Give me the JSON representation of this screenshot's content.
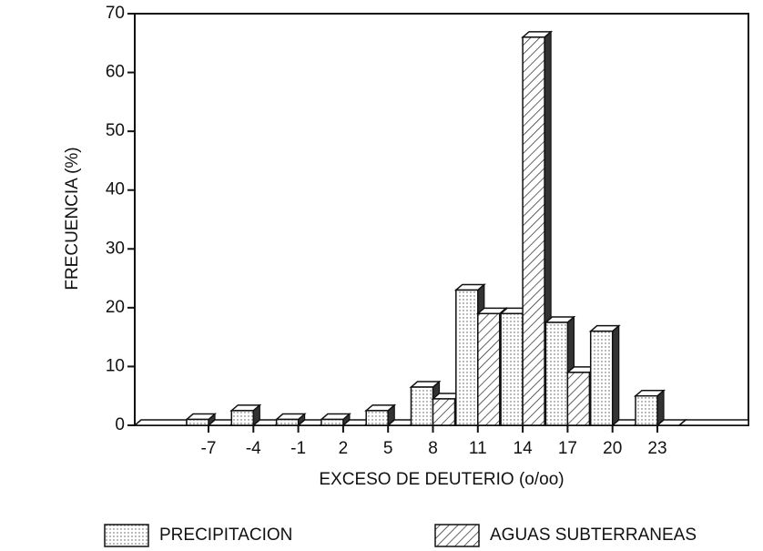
{
  "chart_data": {
    "type": "bar",
    "xlabel": "EXCESO DE DEUTERIO (o/oo)",
    "ylabel": "FRECUENCIA (%)",
    "categories": [
      "-7",
      "-4",
      "-1",
      "2",
      "5",
      "8",
      "11",
      "14",
      "17",
      "20",
      "23"
    ],
    "series": [
      {
        "name": "PRECIPITACION",
        "pattern": "dots",
        "values": [
          1,
          2.5,
          1,
          1,
          2.5,
          6.5,
          23,
          19,
          17.5,
          16,
          5
        ]
      },
      {
        "name": "AGUAS SUBTERRANEAS",
        "pattern": "hatch",
        "values": [
          0,
          0,
          0,
          0,
          0,
          4.5,
          19,
          66,
          9,
          0,
          0
        ]
      }
    ],
    "ylim": [
      0,
      70
    ],
    "yticks": [
      0,
      10,
      20,
      30,
      40,
      50,
      60,
      70
    ]
  }
}
